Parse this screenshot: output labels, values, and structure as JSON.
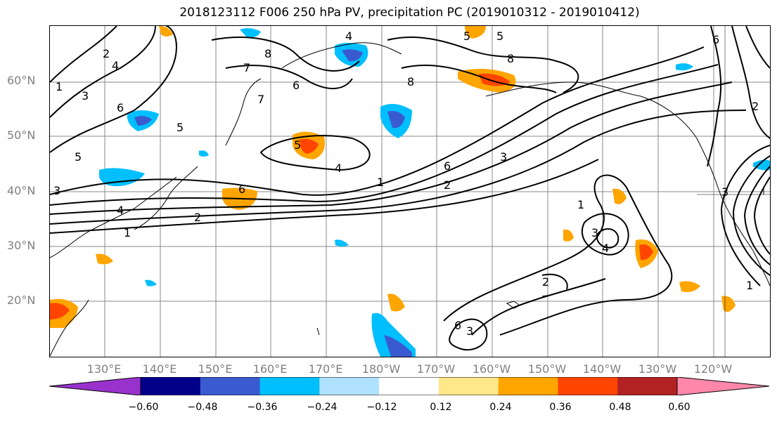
{
  "title": "2018123112 F006 250 hPa PV, precipitation PC (2019010312 - 2019010412)",
  "lat_labels": [
    "60°N",
    "50°N",
    "40°N",
    "30°N",
    "20°N"
  ],
  "lon_labels": [
    "130°E",
    "140°E",
    "150°E",
    "160°E",
    "170°E",
    "180°W",
    "170°W",
    "160°W",
    "150°W",
    "140°W",
    "130°W",
    "120°W"
  ],
  "colorbar": {
    "ticks": [
      "−0.60",
      "−0.48",
      "−0.36",
      "−0.24",
      "−0.12",
      "0.12",
      "0.24",
      "0.36",
      "0.48",
      "0.60"
    ],
    "colors": [
      "#9932cc",
      "#00008b",
      "#3a5bcf",
      "#00bfff",
      "#b0e2ff",
      "#ffffff",
      "#ffe88a",
      "#ffa500",
      "#ff4500",
      "#b22222",
      "#ff88aa"
    ]
  },
  "contour_labels": [
    "1",
    "2",
    "3",
    "4",
    "5",
    "6",
    "7",
    "8",
    "1",
    "2",
    "3",
    "4",
    "5",
    "6",
    "1",
    "2",
    "3",
    "4",
    "5",
    "6",
    "8",
    "3",
    "6",
    "1",
    "2",
    "3",
    "4",
    "1",
    "2",
    "3",
    "5",
    "6",
    "4",
    "5",
    "6",
    "7",
    "8"
  ]
}
